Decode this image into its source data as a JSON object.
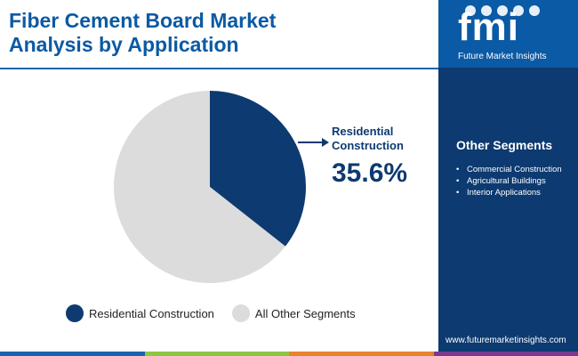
{
  "page": {
    "title_lines": [
      "Fiber Cement Board Market",
      "Analysis by Application"
    ]
  },
  "chart_data": {
    "type": "pie",
    "slices": [
      {
        "name": "Residential Construction",
        "value": 35.6,
        "color": "#0d3a70"
      },
      {
        "name": "All Other Segments",
        "value": 64.4,
        "color": "#dcdcdc"
      }
    ]
  },
  "callout": {
    "label_lines": [
      "Residential",
      "Construction"
    ],
    "value": "35.6%"
  },
  "legend": [
    {
      "label": "Residential Construction",
      "color": "#0d3a70"
    },
    {
      "label": "All Other Segments",
      "color": "#dcdcdc"
    }
  ],
  "sidebar": {
    "logo_letters": "fmi",
    "logo_text": "Future Market Insights",
    "segments_title": "Other Segments",
    "segments": [
      "Commercial Construction",
      "Agricultural Buildings",
      "Interior Applications"
    ],
    "website": "www.futuremarketinsights.com"
  },
  "bottom_bar_colors": [
    "#1b63ad",
    "#8fc641",
    "#e8822c",
    "#7a3b8f"
  ]
}
